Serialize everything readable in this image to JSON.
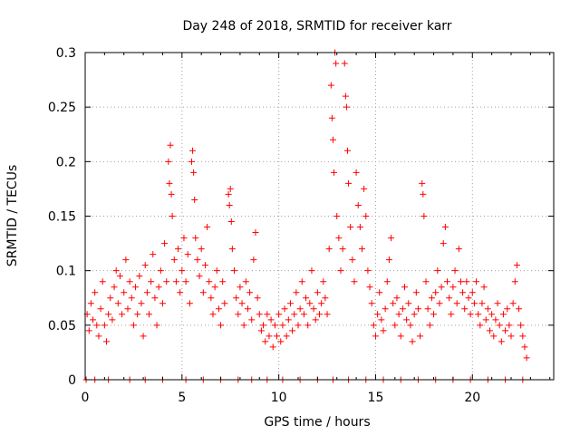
{
  "chart_data": {
    "type": "scatter",
    "title": "Day 248 of 2018, SRMTID for receiver karr",
    "xlabel": "GPS time / hours",
    "ylabel": "SRMTID / TECUs",
    "xlim": [
      0,
      24.2
    ],
    "ylim": [
      0,
      0.3
    ],
    "grid": true,
    "marker": "+",
    "marker_color": "#ff0000",
    "x_ticks": [
      0,
      5,
      10,
      15,
      20
    ],
    "x_tick_labels": [
      "0",
      "5",
      "10",
      "15",
      "20"
    ],
    "y_ticks": [
      0,
      0.05,
      0.1,
      0.15,
      0.2,
      0.25,
      0.3
    ],
    "y_tick_labels": [
      "0",
      "0.05",
      "0.1",
      "0.15",
      "0.2",
      "0.25",
      "0.3"
    ],
    "series": [
      {
        "name": "SRMTID",
        "points": [
          [
            0.1,
            0.06
          ],
          [
            0.2,
            0.045
          ],
          [
            0.3,
            0.07
          ],
          [
            0.4,
            0.055
          ],
          [
            0.5,
            0.08
          ],
          [
            0.6,
            0.05
          ],
          [
            0.7,
            0.04
          ],
          [
            0.8,
            0.065
          ],
          [
            0.9,
            0.09
          ],
          [
            1.0,
            0.05
          ],
          [
            1.1,
            0.035
          ],
          [
            1.2,
            0.06
          ],
          [
            1.3,
            0.075
          ],
          [
            1.4,
            0.055
          ],
          [
            1.5,
            0.085
          ],
          [
            1.6,
            0.1
          ],
          [
            1.7,
            0.07
          ],
          [
            1.8,
            0.095
          ],
          [
            1.9,
            0.06
          ],
          [
            2.0,
            0.08
          ],
          [
            2.1,
            0.11
          ],
          [
            2.2,
            0.065
          ],
          [
            2.3,
            0.09
          ],
          [
            2.4,
            0.075
          ],
          [
            2.5,
            0.05
          ],
          [
            2.6,
            0.085
          ],
          [
            2.7,
            0.06
          ],
          [
            2.8,
            0.095
          ],
          [
            2.9,
            0.07
          ],
          [
            3.0,
            0.04
          ],
          [
            3.1,
            0.105
          ],
          [
            3.2,
            0.08
          ],
          [
            3.3,
            0.06
          ],
          [
            3.4,
            0.09
          ],
          [
            3.5,
            0.115
          ],
          [
            3.6,
            0.075
          ],
          [
            3.7,
            0.05
          ],
          [
            3.8,
            0.085
          ],
          [
            3.9,
            0.1
          ],
          [
            4.0,
            0.07
          ],
          [
            4.1,
            0.125
          ],
          [
            4.2,
            0.09
          ],
          [
            4.3,
            0.2
          ],
          [
            4.35,
            0.18
          ],
          [
            4.4,
            0.215
          ],
          [
            4.45,
            0.17
          ],
          [
            4.5,
            0.15
          ],
          [
            4.6,
            0.11
          ],
          [
            4.7,
            0.09
          ],
          [
            4.8,
            0.12
          ],
          [
            4.9,
            0.08
          ],
          [
            5.0,
            0.1
          ],
          [
            5.1,
            0.13
          ],
          [
            5.2,
            0.09
          ],
          [
            5.3,
            0.115
          ],
          [
            5.4,
            0.07
          ],
          [
            5.5,
            0.2
          ],
          [
            5.55,
            0.21
          ],
          [
            5.6,
            0.19
          ],
          [
            5.65,
            0.165
          ],
          [
            5.7,
            0.13
          ],
          [
            5.8,
            0.11
          ],
          [
            5.9,
            0.095
          ],
          [
            6.0,
            0.12
          ],
          [
            6.1,
            0.08
          ],
          [
            6.2,
            0.105
          ],
          [
            6.3,
            0.14
          ],
          [
            6.4,
            0.09
          ],
          [
            6.5,
            0.075
          ],
          [
            6.6,
            0.06
          ],
          [
            6.7,
            0.085
          ],
          [
            6.8,
            0.1
          ],
          [
            6.9,
            0.065
          ],
          [
            7.0,
            0.05
          ],
          [
            7.1,
            0.09
          ],
          [
            7.2,
            0.07
          ],
          [
            7.4,
            0.17
          ],
          [
            7.45,
            0.16
          ],
          [
            7.5,
            0.175
          ],
          [
            7.55,
            0.145
          ],
          [
            7.6,
            0.12
          ],
          [
            7.7,
            0.1
          ],
          [
            7.8,
            0.075
          ],
          [
            7.9,
            0.06
          ],
          [
            8.0,
            0.085
          ],
          [
            8.1,
            0.07
          ],
          [
            8.2,
            0.05
          ],
          [
            8.3,
            0.09
          ],
          [
            8.4,
            0.065
          ],
          [
            8.5,
            0.08
          ],
          [
            8.6,
            0.055
          ],
          [
            8.7,
            0.11
          ],
          [
            8.8,
            0.135
          ],
          [
            8.9,
            0.075
          ],
          [
            9.0,
            0.06
          ],
          [
            9.1,
            0.045
          ],
          [
            9.2,
            0.05
          ],
          [
            9.3,
            0.035
          ],
          [
            9.4,
            0.06
          ],
          [
            9.5,
            0.04
          ],
          [
            9.6,
            0.055
          ],
          [
            9.7,
            0.03
          ],
          [
            9.8,
            0.05
          ],
          [
            9.9,
            0.04
          ],
          [
            10.0,
            0.06
          ],
          [
            10.1,
            0.035
          ],
          [
            10.2,
            0.05
          ],
          [
            10.3,
            0.065
          ],
          [
            10.4,
            0.04
          ],
          [
            10.5,
            0.055
          ],
          [
            10.6,
            0.07
          ],
          [
            10.7,
            0.045
          ],
          [
            10.8,
            0.06
          ],
          [
            10.9,
            0.08
          ],
          [
            11.0,
            0.05
          ],
          [
            11.1,
            0.065
          ],
          [
            11.2,
            0.09
          ],
          [
            11.3,
            0.06
          ],
          [
            11.4,
            0.075
          ],
          [
            11.5,
            0.05
          ],
          [
            11.6,
            0.07
          ],
          [
            11.7,
            0.1
          ],
          [
            11.8,
            0.065
          ],
          [
            11.9,
            0.055
          ],
          [
            12.0,
            0.08
          ],
          [
            12.1,
            0.06
          ],
          [
            12.2,
            0.07
          ],
          [
            12.3,
            0.09
          ],
          [
            12.4,
            0.075
          ],
          [
            12.5,
            0.06
          ],
          [
            12.6,
            0.12
          ],
          [
            12.7,
            0.27
          ],
          [
            12.75,
            0.24
          ],
          [
            12.8,
            0.22
          ],
          [
            12.85,
            0.19
          ],
          [
            12.9,
            0.3
          ],
          [
            12.95,
            0.29
          ],
          [
            13.0,
            0.15
          ],
          [
            13.1,
            0.13
          ],
          [
            13.2,
            0.1
          ],
          [
            13.3,
            0.12
          ],
          [
            13.4,
            0.29
          ],
          [
            13.45,
            0.26
          ],
          [
            13.5,
            0.25
          ],
          [
            13.55,
            0.21
          ],
          [
            13.6,
            0.18
          ],
          [
            13.7,
            0.14
          ],
          [
            13.8,
            0.11
          ],
          [
            13.9,
            0.09
          ],
          [
            14.0,
            0.19
          ],
          [
            14.1,
            0.16
          ],
          [
            14.2,
            0.14
          ],
          [
            14.3,
            0.12
          ],
          [
            14.4,
            0.175
          ],
          [
            14.5,
            0.15
          ],
          [
            14.6,
            0.1
          ],
          [
            14.7,
            0.085
          ],
          [
            14.8,
            0.07
          ],
          [
            14.9,
            0.05
          ],
          [
            15.0,
            0.04
          ],
          [
            15.1,
            0.06
          ],
          [
            15.2,
            0.08
          ],
          [
            15.3,
            0.055
          ],
          [
            15.4,
            0.045
          ],
          [
            15.5,
            0.065
          ],
          [
            15.6,
            0.09
          ],
          [
            15.7,
            0.11
          ],
          [
            15.8,
            0.13
          ],
          [
            15.9,
            0.07
          ],
          [
            16.0,
            0.05
          ],
          [
            16.1,
            0.075
          ],
          [
            16.2,
            0.06
          ],
          [
            16.3,
            0.04
          ],
          [
            16.4,
            0.065
          ],
          [
            16.5,
            0.085
          ],
          [
            16.6,
            0.055
          ],
          [
            16.7,
            0.07
          ],
          [
            16.8,
            0.05
          ],
          [
            16.9,
            0.035
          ],
          [
            17.0,
            0.06
          ],
          [
            17.1,
            0.08
          ],
          [
            17.2,
            0.065
          ],
          [
            17.3,
            0.04
          ],
          [
            17.4,
            0.18
          ],
          [
            17.45,
            0.17
          ],
          [
            17.5,
            0.15
          ],
          [
            17.6,
            0.09
          ],
          [
            17.7,
            0.065
          ],
          [
            17.8,
            0.05
          ],
          [
            17.9,
            0.075
          ],
          [
            18.0,
            0.06
          ],
          [
            18.1,
            0.08
          ],
          [
            18.2,
            0.1
          ],
          [
            18.3,
            0.07
          ],
          [
            18.4,
            0.085
          ],
          [
            18.5,
            0.125
          ],
          [
            18.6,
            0.14
          ],
          [
            18.7,
            0.09
          ],
          [
            18.8,
            0.075
          ],
          [
            18.9,
            0.06
          ],
          [
            19.0,
            0.085
          ],
          [
            19.1,
            0.1
          ],
          [
            19.2,
            0.07
          ],
          [
            19.3,
            0.12
          ],
          [
            19.4,
            0.09
          ],
          [
            19.5,
            0.08
          ],
          [
            19.6,
            0.065
          ],
          [
            19.7,
            0.09
          ],
          [
            19.8,
            0.075
          ],
          [
            19.9,
            0.06
          ],
          [
            20.0,
            0.08
          ],
          [
            20.1,
            0.07
          ],
          [
            20.2,
            0.09
          ],
          [
            20.3,
            0.06
          ],
          [
            20.4,
            0.05
          ],
          [
            20.5,
            0.07
          ],
          [
            20.6,
            0.085
          ],
          [
            20.7,
            0.055
          ],
          [
            20.8,
            0.065
          ],
          [
            20.9,
            0.045
          ],
          [
            21.0,
            0.06
          ],
          [
            21.1,
            0.04
          ],
          [
            21.2,
            0.055
          ],
          [
            21.3,
            0.07
          ],
          [
            21.4,
            0.05
          ],
          [
            21.5,
            0.035
          ],
          [
            21.6,
            0.06
          ],
          [
            21.7,
            0.045
          ],
          [
            21.8,
            0.065
          ],
          [
            21.9,
            0.05
          ],
          [
            22.0,
            0.04
          ],
          [
            22.1,
            0.07
          ],
          [
            22.2,
            0.09
          ],
          [
            22.3,
            0.105
          ],
          [
            22.4,
            0.065
          ],
          [
            22.5,
            0.05
          ],
          [
            22.6,
            0.04
          ],
          [
            22.7,
            0.03
          ],
          [
            22.8,
            0.02
          ],
          [
            0.05,
            0.0
          ],
          [
            0.5,
            0.0
          ],
          [
            1.2,
            0.0
          ],
          [
            2.3,
            0.0
          ],
          [
            3.1,
            0.0
          ],
          [
            4.0,
            0.0
          ],
          [
            5.2,
            0.0
          ],
          [
            6.1,
            0.0
          ],
          [
            7.0,
            0.0
          ],
          [
            7.9,
            0.0
          ],
          [
            8.6,
            0.0
          ],
          [
            9.4,
            0.0
          ],
          [
            10.2,
            0.0
          ],
          [
            11.1,
            0.0
          ],
          [
            12.0,
            0.0
          ],
          [
            12.8,
            0.0
          ],
          [
            13.6,
            0.0
          ],
          [
            14.5,
            0.0
          ],
          [
            15.4,
            0.0
          ],
          [
            16.3,
            0.0
          ],
          [
            17.2,
            0.0
          ],
          [
            18.1,
            0.0
          ],
          [
            19.0,
            0.0
          ],
          [
            19.9,
            0.0
          ],
          [
            20.8,
            0.0
          ],
          [
            21.7,
            0.0
          ],
          [
            22.6,
            0.0
          ]
        ]
      }
    ]
  }
}
